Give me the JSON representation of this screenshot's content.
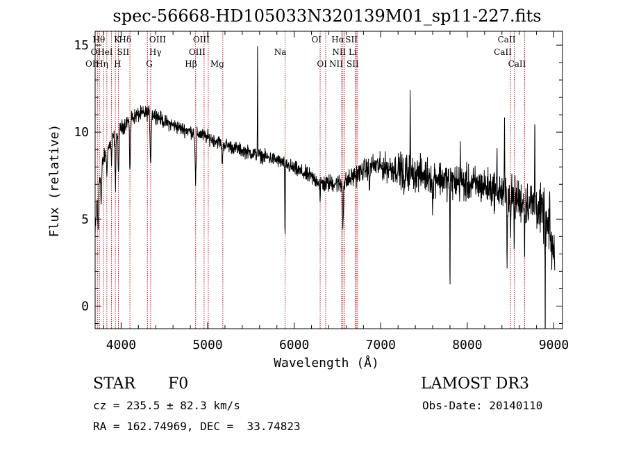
{
  "chart_data": {
    "type": "line",
    "title": "spec-56668-HD105033N320139M01_sp11-227.fits",
    "xlabel": "Wavelength (Å)",
    "ylabel": "Flux (relative)",
    "xlim": [
      3700,
      9100
    ],
    "ylim": [
      -1.3,
      15.8
    ],
    "x_ticks": [
      4000,
      5000,
      6000,
      7000,
      8000,
      9000
    ],
    "x_tick_labels": [
      "4000",
      "5000",
      "6000",
      "7000",
      "8000",
      "9000"
    ],
    "y_ticks": [
      0,
      5,
      10,
      15
    ],
    "y_tick_labels": [
      "0",
      "5",
      "10",
      "15"
    ],
    "grid": false,
    "line_markers": [
      {
        "wave": 3727,
        "labels": [
          {
            "text": "OII",
            "row": 2,
            "side": "left"
          }
        ]
      },
      {
        "wave": 3750,
        "labels": [
          {
            "text": "OI",
            "row": 1,
            "side": "left"
          }
        ]
      },
      {
        "wave": 3798,
        "labels": [
          {
            "text": "Hθ",
            "row": 0,
            "side": "left"
          }
        ]
      },
      {
        "wave": 3835,
        "labels": [
          {
            "text": "Hη",
            "row": 2,
            "side": "left"
          }
        ]
      },
      {
        "wave": 3889,
        "labels": [
          {
            "text": "HeI",
            "row": 1,
            "side": "left"
          }
        ]
      },
      {
        "wave": 3934,
        "labels": [
          {
            "text": "K",
            "row": 0,
            "side": "right"
          },
          {
            "text": "H",
            "row": 2,
            "side": "right"
          }
        ]
      },
      {
        "wave": 3969,
        "labels": [
          {
            "text": "SII",
            "row": 1,
            "side": "right"
          }
        ]
      },
      {
        "wave": 4102,
        "labels": [
          {
            "text": "Hδ",
            "row": 0,
            "side": "left"
          }
        ]
      },
      {
        "wave": 4304,
        "labels": [
          {
            "text": "G",
            "row": 2,
            "side": "right"
          }
        ]
      },
      {
        "wave": 4341,
        "labels": [
          {
            "text": "OIII",
            "row": 0,
            "side": "right"
          },
          {
            "text": "Hγ",
            "row": 1,
            "side": "right"
          }
        ]
      },
      {
        "wave": 4861,
        "labels": [
          {
            "text": "Hβ",
            "row": 2,
            "side": "left"
          }
        ]
      },
      {
        "wave": 4959,
        "labels": [
          {
            "text": "OIII",
            "row": 1,
            "side": "left"
          }
        ]
      },
      {
        "wave": 5007,
        "labels": [
          {
            "text": "OIII",
            "row": 0,
            "side": "left"
          }
        ]
      },
      {
        "wave": 5175,
        "labels": [
          {
            "text": "Mg",
            "row": 2,
            "side": "left"
          }
        ]
      },
      {
        "wave": 5894,
        "labels": [
          {
            "text": "Na",
            "row": 1,
            "side": "left"
          }
        ]
      },
      {
        "wave": 6300,
        "labels": [
          {
            "text": "OI",
            "row": 0,
            "side": "left"
          }
        ]
      },
      {
        "wave": 6364,
        "labels": [
          {
            "text": "OI",
            "row": 2,
            "side": "left"
          }
        ]
      },
      {
        "wave": 6548,
        "labels": [
          {
            "text": "NII",
            "row": 2,
            "side": "left"
          }
        ]
      },
      {
        "wave": 6563,
        "labels": [
          {
            "text": "Hα",
            "row": 0,
            "side": "left"
          }
        ]
      },
      {
        "wave": 6583,
        "labels": [
          {
            "text": "NII",
            "row": 1,
            "side": "left"
          }
        ]
      },
      {
        "wave": 6707,
        "labels": [
          {
            "text": "Li",
            "row": 1,
            "side": "left"
          }
        ]
      },
      {
        "wave": 6717,
        "labels": [
          {
            "text": "SII",
            "row": 0,
            "side": "left"
          }
        ]
      },
      {
        "wave": 6731,
        "labels": [
          {
            "text": "SII",
            "row": 2,
            "side": "left"
          }
        ]
      },
      {
        "wave": 8498,
        "labels": [
          {
            "text": "CaII",
            "row": 1,
            "side": "left"
          }
        ]
      },
      {
        "wave": 8542,
        "labels": [
          {
            "text": "CaII",
            "row": 0,
            "side": "left"
          }
        ]
      },
      {
        "wave": 8662,
        "labels": [
          {
            "text": "CaII",
            "row": 2,
            "side": "left"
          }
        ]
      }
    ],
    "spectrum_shape": {
      "anchors": [
        [
          3700,
          4
        ],
        [
          3730,
          7
        ],
        [
          3800,
          8.5
        ],
        [
          3900,
          9.6
        ],
        [
          4000,
          10.2
        ],
        [
          4100,
          10.8
        ],
        [
          4200,
          11.0
        ],
        [
          4300,
          11.1
        ],
        [
          4400,
          11.0
        ],
        [
          4500,
          10.6
        ],
        [
          4700,
          10.2
        ],
        [
          4900,
          9.9
        ],
        [
          5100,
          9.5
        ],
        [
          5300,
          9.1
        ],
        [
          5500,
          8.8
        ],
        [
          5800,
          8.4
        ],
        [
          6000,
          7.9
        ],
        [
          6200,
          7.4
        ],
        [
          6350,
          7.0
        ],
        [
          6450,
          7.1
        ],
        [
          6560,
          7.0
        ],
        [
          6700,
          7.5
        ],
        [
          6900,
          8.1
        ],
        [
          7000,
          8.0
        ],
        [
          7200,
          7.9
        ],
        [
          7400,
          7.6
        ],
        [
          7600,
          7.5
        ],
        [
          7800,
          7.2
        ],
        [
          8000,
          7.0
        ],
        [
          8200,
          6.9
        ],
        [
          8400,
          6.5
        ],
        [
          8600,
          6.1
        ],
        [
          8800,
          5.8
        ],
        [
          8900,
          5.0
        ],
        [
          9000,
          3.0
        ],
        [
          9010,
          2.5
        ]
      ],
      "noise": [
        [
          3700,
          0.35
        ],
        [
          4600,
          0.28
        ],
        [
          5800,
          0.28
        ],
        [
          6900,
          0.45
        ],
        [
          7300,
          0.7
        ],
        [
          8200,
          0.75
        ],
        [
          8700,
          0.9
        ],
        [
          9010,
          1.1
        ]
      ],
      "features": [
        {
          "wave": 3734,
          "depth": -2.8,
          "width": 5
        },
        {
          "wave": 3770,
          "depth": -2.0,
          "width": 5
        },
        {
          "wave": 3835,
          "depth": -1.5,
          "width": 4
        },
        {
          "wave": 3889,
          "depth": -1.3,
          "width": 4
        },
        {
          "wave": 3934,
          "depth": -2.8,
          "width": 5
        },
        {
          "wave": 3970,
          "depth": -2.6,
          "width": 5
        },
        {
          "wave": 4102,
          "depth": -2.8,
          "width": 6
        },
        {
          "wave": 4341,
          "depth": -2.7,
          "width": 6
        },
        {
          "wave": 4861,
          "depth": -2.8,
          "width": 6
        },
        {
          "wave": 5169,
          "depth": -1.0,
          "width": 6
        },
        {
          "wave": 5577,
          "depth": 6.5,
          "width": 2
        },
        {
          "wave": 5894,
          "depth": -4.5,
          "width": 3
        },
        {
          "wave": 6300,
          "depth": -1.4,
          "width": 3
        },
        {
          "wave": 6563,
          "depth": -2.2,
          "width": 5
        },
        {
          "wave": 6870,
          "depth": -1.3,
          "width": 5
        },
        {
          "wave": 7270,
          "depth": -1.4,
          "width": 6
        },
        {
          "wave": 7340,
          "depth": 4.5,
          "width": 2
        },
        {
          "wave": 7600,
          "depth": -2.0,
          "width": 5
        },
        {
          "wave": 7800,
          "depth": -7.0,
          "width": 2
        },
        {
          "wave": 7920,
          "depth": 2.5,
          "width": 2
        },
        {
          "wave": 8344,
          "depth": 2.2,
          "width": 2
        },
        {
          "wave": 8430,
          "depth": 4.2,
          "width": 2
        },
        {
          "wave": 8460,
          "depth": -3.5,
          "width": 3
        },
        {
          "wave": 8498,
          "depth": -2.0,
          "width": 3
        },
        {
          "wave": 8542,
          "depth": -2.8,
          "width": 3
        },
        {
          "wave": 8662,
          "depth": -2.4,
          "width": 3
        },
        {
          "wave": 8780,
          "depth": 6.0,
          "width": 2
        },
        {
          "wave": 8900,
          "depth": -7.0,
          "width": 2
        },
        {
          "wave": 8950,
          "depth": 2.0,
          "width": 2
        }
      ]
    }
  },
  "info": {
    "object_class": "STAR",
    "subclass": "F0",
    "survey": "LAMOST DR3",
    "cz_line": "cz = 235.5 ± 82.3 km/s",
    "obs_date_line": "Obs-Date: 20140110",
    "coord_line": "RA = 162.74969, DEC =  33.74823"
  },
  "colors": {
    "spectrum": "#000000",
    "marker_line": "#c00000",
    "axes": "#000000",
    "background": "#ffffff"
  }
}
